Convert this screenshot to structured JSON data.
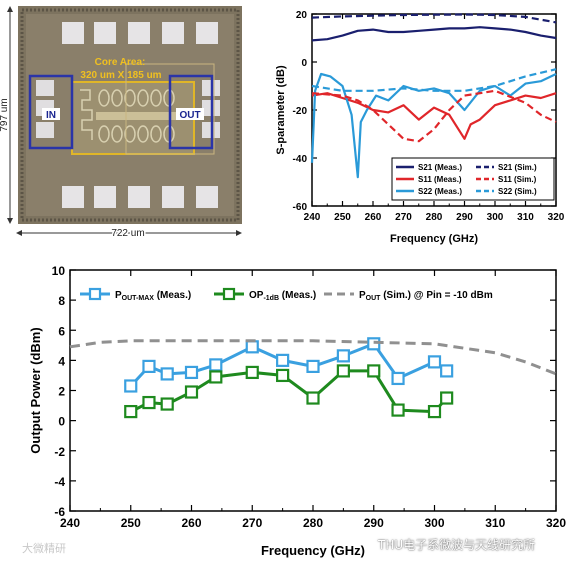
{
  "die_photo": {
    "core_area_label": "Core Area:",
    "core_area_size": "320 um X 185 um",
    "port_in": "IN",
    "port_out": "OUT",
    "height_label": "797 um",
    "width_label": "722 um",
    "colors": {
      "die": "#8a7f6a",
      "core_box": "#e0b628",
      "port_box": "#2a34a8",
      "core_text": "#f0c020"
    }
  },
  "chart_data": [
    {
      "type": "line",
      "title": "",
      "xlabel": "Frequency (GHz)",
      "ylabel": "S-parameter (dB)",
      "xlim": [
        240,
        320
      ],
      "ylim": [
        -60,
        20
      ],
      "xticks": [
        "240",
        "250",
        "260",
        "270",
        "280",
        "290",
        "300",
        "310",
        "320"
      ],
      "yticks": [
        "20",
        "0",
        "-20",
        "-40",
        "-60"
      ],
      "grid": false,
      "legend_position": "bottom-right",
      "series": [
        {
          "name": "S21 (Meas.)",
          "color": "#1a1f6e",
          "dash": "solid",
          "x": [
            240,
            245,
            250,
            255,
            260,
            265,
            270,
            275,
            280,
            285,
            290,
            295,
            300,
            305,
            310,
            315,
            320
          ],
          "y": [
            9,
            9.5,
            11,
            13,
            13.5,
            12.5,
            12.5,
            13,
            13.5,
            14,
            14,
            14.5,
            14,
            13.5,
            12.5,
            11,
            10
          ]
        },
        {
          "name": "S11 (Meas.)",
          "color": "#e0262a",
          "dash": "solid",
          "x": [
            240,
            245,
            250,
            255,
            260,
            265,
            270,
            275,
            280,
            285,
            288,
            290,
            292,
            295,
            300,
            305,
            310,
            315,
            320
          ],
          "y": [
            -14,
            -13,
            -15,
            -17,
            -20,
            -21,
            -18,
            -24,
            -19,
            -22,
            -28,
            -32,
            -26,
            -24,
            -18,
            -16,
            -14,
            -15,
            -13
          ]
        },
        {
          "name": "S22 (Meas.)",
          "color": "#2a9ad8",
          "dash": "solid",
          "x": [
            240,
            241,
            243,
            246,
            250,
            253,
            255,
            256,
            258,
            261,
            265,
            270,
            275,
            280,
            285,
            290,
            295,
            300,
            305,
            310,
            315,
            320
          ],
          "y": [
            -42,
            -12,
            -5,
            -6,
            -10,
            -22,
            -48,
            -25,
            -20,
            -14,
            -16,
            -10,
            -12,
            -11,
            -13,
            -20,
            -12,
            -10,
            -14,
            -9,
            -8,
            -5
          ]
        },
        {
          "name": "S21 (Sim.)",
          "color": "#1a1f6e",
          "dash": "dashed",
          "x": [
            240,
            250,
            260,
            270,
            280,
            290,
            300,
            310,
            320
          ],
          "y": [
            18.5,
            19,
            19.3,
            19.6,
            19.7,
            19.8,
            19.6,
            18.8,
            16.5
          ]
        },
        {
          "name": "S11 (Sim.)",
          "color": "#e0262a",
          "dash": "dashed",
          "x": [
            240,
            250,
            255,
            260,
            265,
            270,
            275,
            280,
            285,
            290,
            300,
            310,
            315,
            320
          ],
          "y": [
            -13,
            -14,
            -16,
            -20,
            -26,
            -32,
            -33,
            -28,
            -20,
            -14,
            -12,
            -17,
            -22,
            -25
          ]
        },
        {
          "name": "S22 (Sim.)",
          "color": "#2a9ad8",
          "dash": "dashed",
          "x": [
            240,
            250,
            260,
            270,
            280,
            290,
            300,
            310,
            320
          ],
          "y": [
            -10,
            -12,
            -12,
            -11,
            -12,
            -12,
            -10,
            -6,
            -3
          ]
        }
      ]
    },
    {
      "type": "line",
      "title": "",
      "xlabel": "Frequency (GHz)",
      "ylabel": "Output Power (dBm)",
      "xlim": [
        240,
        320
      ],
      "ylim": [
        -6,
        10
      ],
      "xticks": [
        "240",
        "250",
        "260",
        "270",
        "280",
        "290",
        "300",
        "310",
        "320"
      ],
      "yticks": [
        "10",
        "8",
        "6",
        "4",
        "2",
        "0",
        "-2",
        "-4",
        "-6"
      ],
      "grid": false,
      "legend_position": "top",
      "series": [
        {
          "name": "P",
          "name_sub": "OUT-MAX",
          "name_tail": " (Meas.)",
          "color": "#3aa0e0",
          "marker": "square",
          "x": [
            250,
            253,
            256,
            260,
            264,
            270,
            275,
            280,
            285,
            290,
            294,
            300,
            302
          ],
          "y": [
            2.3,
            3.6,
            3.1,
            3.2,
            3.7,
            4.9,
            4.0,
            3.6,
            4.3,
            5.1,
            2.8,
            3.9,
            3.3
          ]
        },
        {
          "name": "OP",
          "name_sub": "-1dB",
          "name_tail": " (Meas.)",
          "color": "#1e8a1e",
          "marker": "square",
          "x": [
            250,
            253,
            256,
            260,
            264,
            270,
            275,
            280,
            285,
            290,
            294,
            300,
            302
          ],
          "y": [
            0.6,
            1.2,
            1.1,
            1.9,
            2.9,
            3.2,
            3.0,
            1.5,
            3.3,
            3.3,
            0.7,
            0.6,
            1.5
          ]
        },
        {
          "name": "P",
          "name_sub": "OUT",
          "name_tail": " (Sim.) @ Pin = -10 dBm",
          "color": "#909090",
          "marker": "none",
          "dash": "dashed",
          "x": [
            240,
            245,
            250,
            260,
            270,
            280,
            290,
            300,
            310,
            315,
            320
          ],
          "y": [
            4.9,
            5.2,
            5.3,
            5.3,
            5.3,
            5.3,
            5.2,
            5.1,
            4.5,
            3.9,
            3.1
          ]
        }
      ]
    }
  ],
  "watermark_left": "大微精研",
  "watermark_right": "THU电子系微波与天线研究所"
}
